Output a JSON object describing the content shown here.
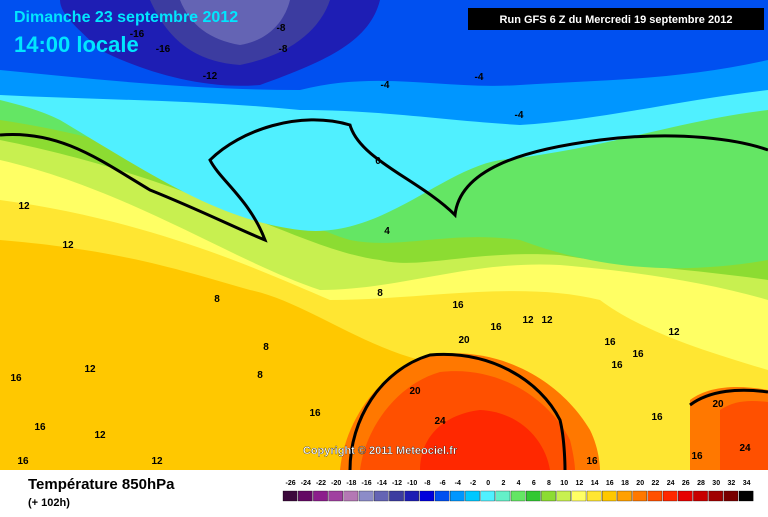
{
  "header": {
    "date": "Dimanche 23 septembre 2012",
    "time": "14:00 locale",
    "run": "Run GFS 6 Z du Mercredi 19 septembre 2012"
  },
  "footer": {
    "title": "Température 850hPa",
    "subtitle": "(+ 102h)",
    "copyright": "Copyright © 2011 Meteociel.fr"
  },
  "scale": {
    "values": [
      -26,
      -24,
      -22,
      -20,
      -18,
      -16,
      -14,
      -12,
      -10,
      -8,
      -6,
      -4,
      -2,
      0,
      2,
      4,
      6,
      8,
      10,
      12,
      14,
      16,
      18,
      20,
      22,
      24,
      26,
      28,
      30,
      32,
      34
    ],
    "colors": [
      "#3c0a3c",
      "#640a64",
      "#8c1e8c",
      "#a040a0",
      "#b478b4",
      "#8c8cc8",
      "#6464b4",
      "#3c3ca0",
      "#1e1eb4",
      "#0000dc",
      "#0050f0",
      "#0096ff",
      "#00c8ff",
      "#50f0ff",
      "#64f0c8",
      "#64e664",
      "#32c832",
      "#8cdc32",
      "#c8f050",
      "#ffff64",
      "#ffe632",
      "#ffc800",
      "#ffa000",
      "#ff7800",
      "#ff5000",
      "#ff2800",
      "#e60000",
      "#c80000",
      "#a00000",
      "#780000",
      "#000000"
    ]
  },
  "contour_labels": [
    -16,
    -16,
    -8,
    -8,
    -12,
    -4,
    -4,
    -4,
    0,
    4,
    8,
    8,
    8,
    8,
    12,
    12,
    12,
    12,
    12,
    12,
    12,
    12,
    16,
    16,
    16,
    16,
    16,
    16,
    16,
    16,
    16,
    16,
    16,
    16,
    20,
    20,
    20,
    24,
    24
  ]
}
